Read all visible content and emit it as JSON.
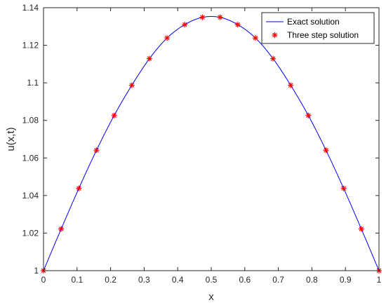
{
  "chart_data": {
    "type": "line",
    "title": "",
    "xlabel": "x",
    "ylabel": "u(x,t)",
    "xlim": [
      0,
      1
    ],
    "ylim": [
      1,
      1.14
    ],
    "grid": false,
    "legend_position": "top-right",
    "x_ticks": [
      {
        "value": 0,
        "label": "0"
      },
      {
        "value": 0.1,
        "label": "0.1"
      },
      {
        "value": 0.2,
        "label": "0.2"
      },
      {
        "value": 0.3,
        "label": "0.3"
      },
      {
        "value": 0.4,
        "label": "0.4"
      },
      {
        "value": 0.5,
        "label": "0.5"
      },
      {
        "value": 0.6,
        "label": "0.6"
      },
      {
        "value": 0.7,
        "label": "0.7"
      },
      {
        "value": 0.8,
        "label": "0.8"
      },
      {
        "value": 0.9,
        "label": "0.9"
      },
      {
        "value": 1,
        "label": "1"
      }
    ],
    "y_ticks": [
      {
        "value": 1,
        "label": "1"
      },
      {
        "value": 1.02,
        "label": "1.02"
      },
      {
        "value": 1.04,
        "label": "1.04"
      },
      {
        "value": 1.06,
        "label": "1.06"
      },
      {
        "value": 1.08,
        "label": "1.08"
      },
      {
        "value": 1.1,
        "label": "1.1"
      },
      {
        "value": 1.12,
        "label": "1.12"
      },
      {
        "value": 1.14,
        "label": "1.14"
      }
    ],
    "series": [
      {
        "name": "Exact solution",
        "style": "line",
        "color": "#0000ff",
        "x": [
          0,
          0.0526,
          0.1053,
          0.1579,
          0.2105,
          0.2632,
          0.3158,
          0.3684,
          0.4211,
          0.4737,
          0.5263,
          0.5789,
          0.6316,
          0.6842,
          0.7368,
          0.7895,
          0.8421,
          0.8947,
          0.9474,
          1
        ],
        "y": [
          1.0,
          1.0222,
          1.0438,
          1.0641,
          1.0826,
          1.0987,
          1.1129,
          1.1239,
          1.131,
          1.1349,
          1.1349,
          1.131,
          1.1239,
          1.1129,
          1.0987,
          1.0826,
          1.0641,
          1.0438,
          1.0222,
          1.0
        ]
      },
      {
        "name": "Three step solution",
        "style": "marker",
        "marker": "asterisk",
        "color": "#ff0000",
        "x": [
          0,
          0.0526,
          0.1053,
          0.1579,
          0.2105,
          0.2632,
          0.3158,
          0.3684,
          0.4211,
          0.4737,
          0.5263,
          0.5789,
          0.6316,
          0.6842,
          0.7368,
          0.7895,
          0.8421,
          0.8947,
          0.9474,
          1
        ],
        "y": [
          1.0,
          1.0222,
          1.0438,
          1.0641,
          1.0826,
          1.0987,
          1.1129,
          1.1239,
          1.131,
          1.1349,
          1.1349,
          1.131,
          1.1239,
          1.1129,
          1.0987,
          1.0826,
          1.0641,
          1.0438,
          1.0222,
          1.0
        ]
      }
    ]
  }
}
